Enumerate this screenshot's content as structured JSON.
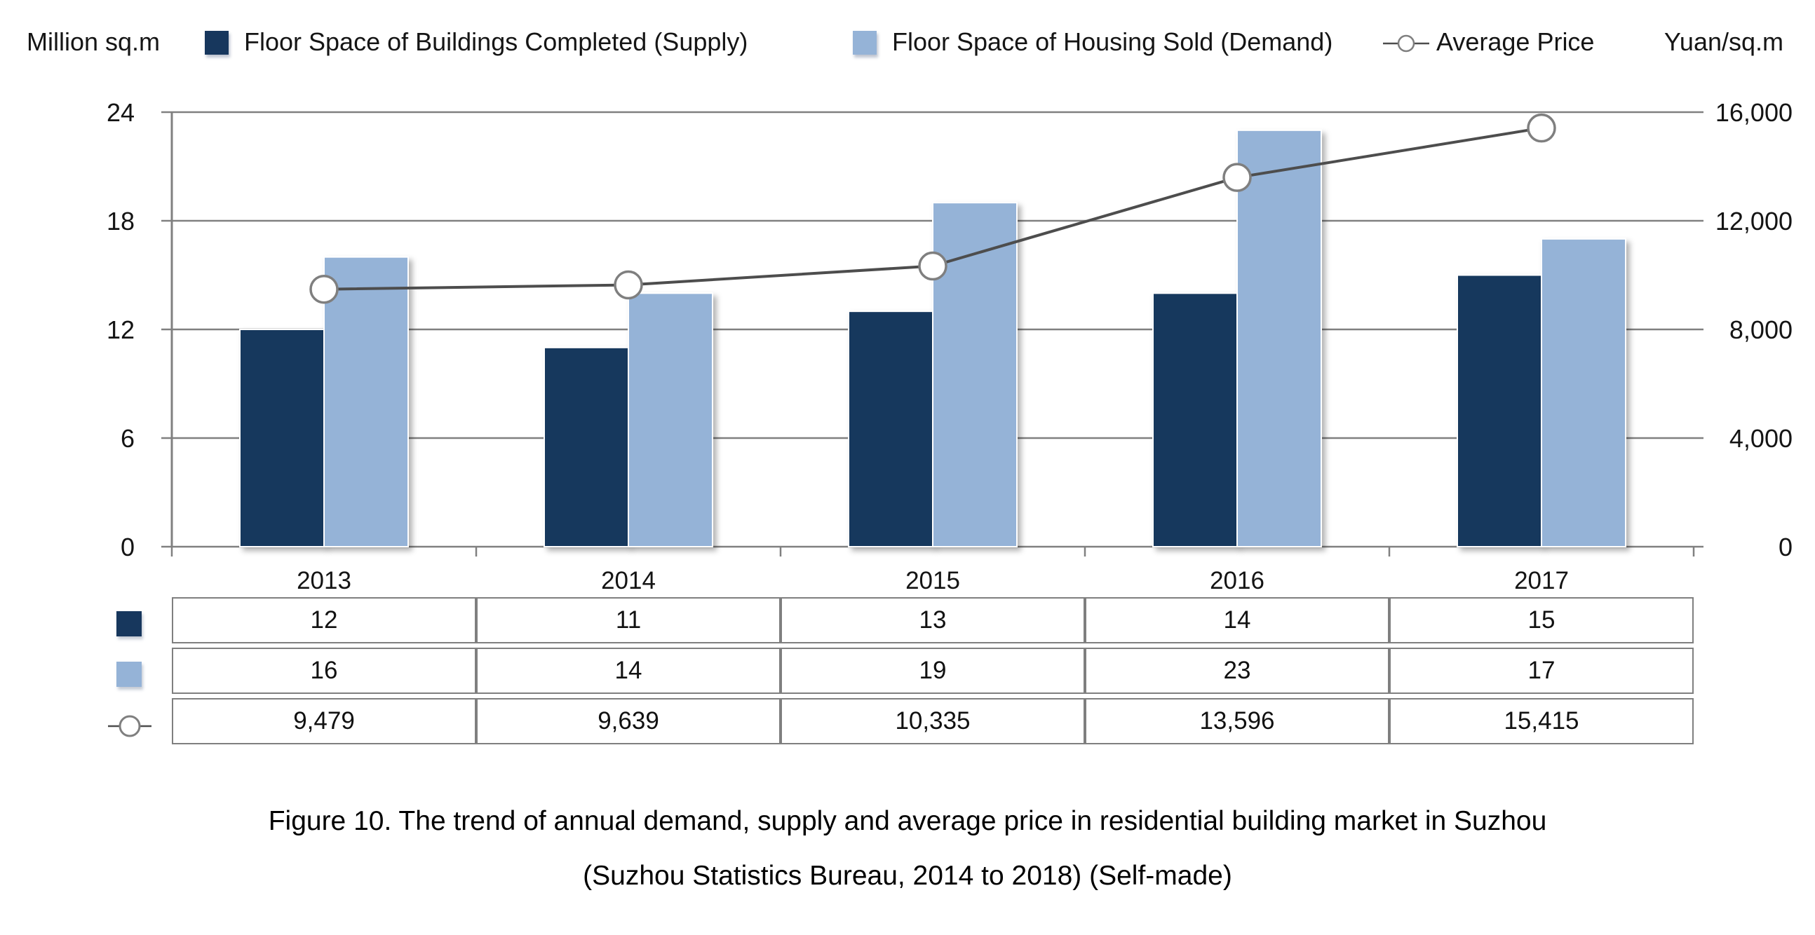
{
  "legend": {
    "items": [
      {
        "label": "Floor Space of Buildings Completed (Supply)",
        "marker": "square-icon"
      },
      {
        "label": "Floor Space of Housing Sold (Demand)",
        "marker": "square-icon"
      },
      {
        "label": "Average Price",
        "marker": "circle-line-icon"
      }
    ]
  },
  "chart_data": {
    "type": "bar+line",
    "categories": [
      "2013",
      "2014",
      "2015",
      "2016",
      "2017"
    ],
    "series": [
      {
        "name": "Floor Space of Buildings Completed (Supply)",
        "type": "bar",
        "axis": "left",
        "values": [
          12,
          11,
          13,
          14,
          15
        ]
      },
      {
        "name": "Floor Space of Housing Sold (Demand)",
        "type": "bar",
        "axis": "left",
        "values": [
          16,
          14,
          19,
          23,
          17
        ]
      },
      {
        "name": "Average Price",
        "type": "line",
        "axis": "right",
        "values": [
          9479,
          9639,
          10335,
          13596,
          15415
        ]
      }
    ],
    "left_axis": {
      "unit": "Million sq.m",
      "min": 0,
      "max": 24,
      "ticks": [
        0,
        6,
        12,
        18,
        24
      ],
      "tick_labels": [
        "0",
        "6",
        "12",
        "18",
        "24"
      ]
    },
    "right_axis": {
      "unit": "Yuan/sq.m",
      "min": 0,
      "max": 16000,
      "ticks": [
        0,
        4000,
        8000,
        12000,
        16000
      ],
      "tick_labels": [
        "0",
        "4,000",
        "8,000",
        "12,000",
        "16,000"
      ]
    },
    "grid": true,
    "legend_position": "top"
  },
  "table": {
    "rows": [
      {
        "key": "supply",
        "cells": [
          "12",
          "11",
          "13",
          "14",
          "15"
        ]
      },
      {
        "key": "demand",
        "cells": [
          "16",
          "14",
          "19",
          "23",
          "17"
        ]
      },
      {
        "key": "price",
        "cells": [
          "9,479",
          "9,639",
          "10,335",
          "13,596",
          "15,415"
        ]
      }
    ]
  },
  "caption": {
    "line1": "Figure 10. The trend of annual demand, supply and average price in residential building market in Suzhou",
    "line2": "(Suzhou Statistics Bureau, 2014 to 2018) (Self-made)"
  },
  "colors": {
    "supply_bar": "#17375D",
    "demand_bar": "#95B3D7",
    "price_line": "#4D4D4D",
    "marker_fill": "#FFFFFF",
    "marker_stroke": "#7F7F7F",
    "grid": "#808080",
    "table_border": "#7F7F7F",
    "text": "#141414"
  }
}
